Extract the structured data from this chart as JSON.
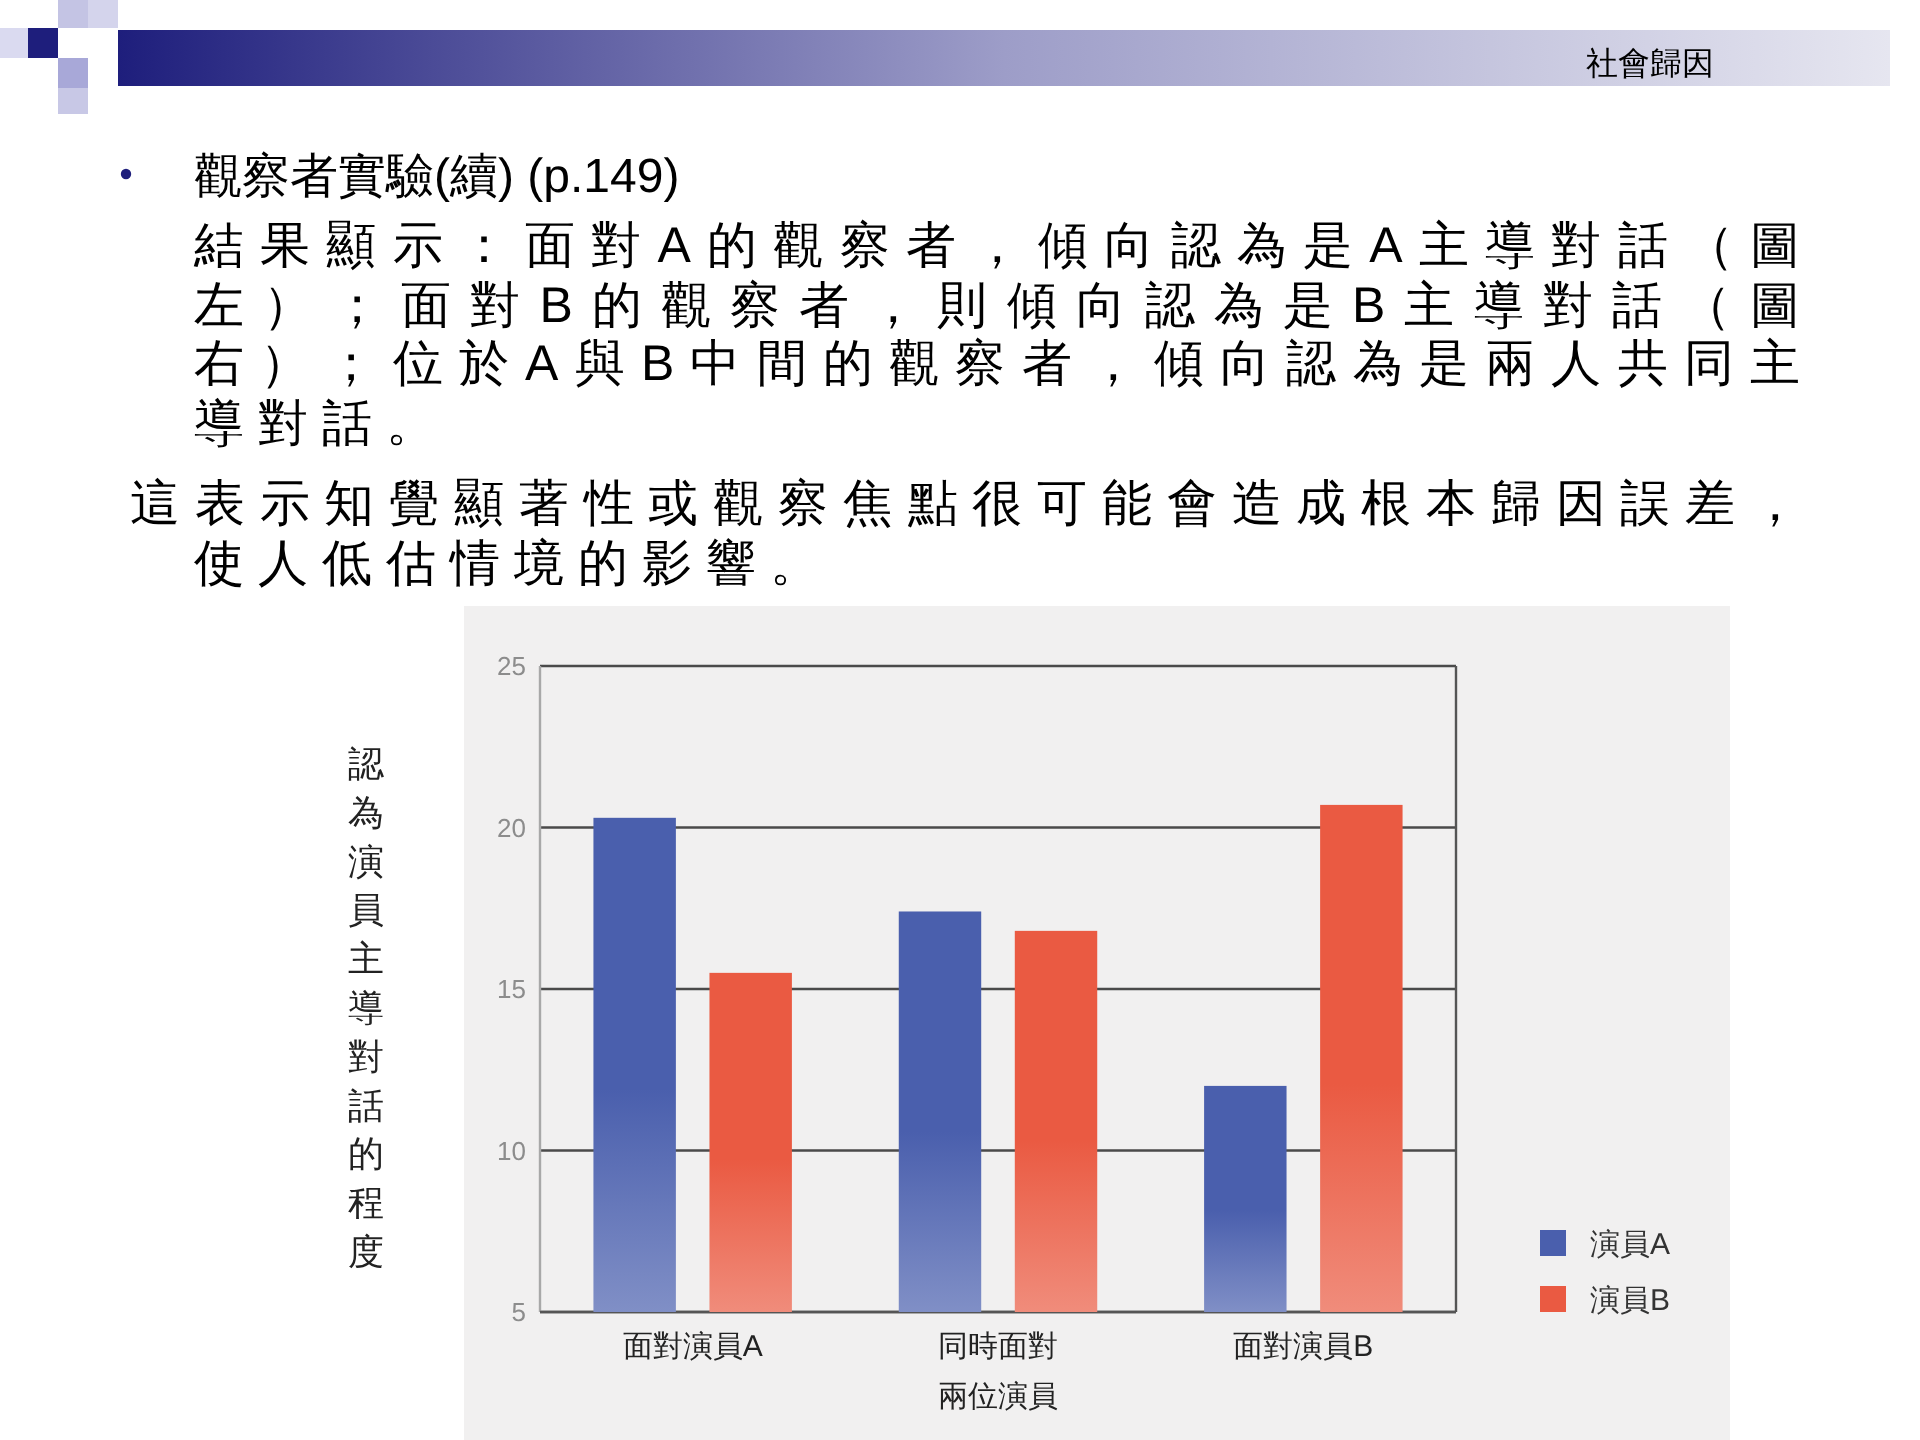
{
  "chart_data": {
    "type": "bar",
    "title": "觀察者實驗(續) (p.149)",
    "annotations": [
      "社會歸因",
      "結果顯示：面對A的觀察者，傾向認為是A主導對話（圖左）；面對B的觀察者，則傾向認為是B主導對話（圖右）；位於A與B中間的觀察者，傾向認為是兩人共同主導對話。",
      "這表示知覺顯著性或觀察焦點很可能會造成根本歸因誤差，使人低估情境的影響。"
    ],
    "ylabel": "認為演員主導對話的程度",
    "categories": [
      "面對演員A",
      "同時面對兩位演員",
      "面對演員B"
    ],
    "series": [
      {
        "name": "演員A",
        "color": "#4a5fad",
        "values": [
          20.3,
          17.4,
          12.0
        ]
      },
      {
        "name": "演員B",
        "color": "#ea5a42",
        "values": [
          15.5,
          16.8,
          20.7
        ]
      }
    ],
    "ylim": [
      5,
      25
    ],
    "yticks": [
      5,
      10,
      15,
      20,
      25
    ],
    "grid": "y",
    "legend": "bottom right"
  }
}
